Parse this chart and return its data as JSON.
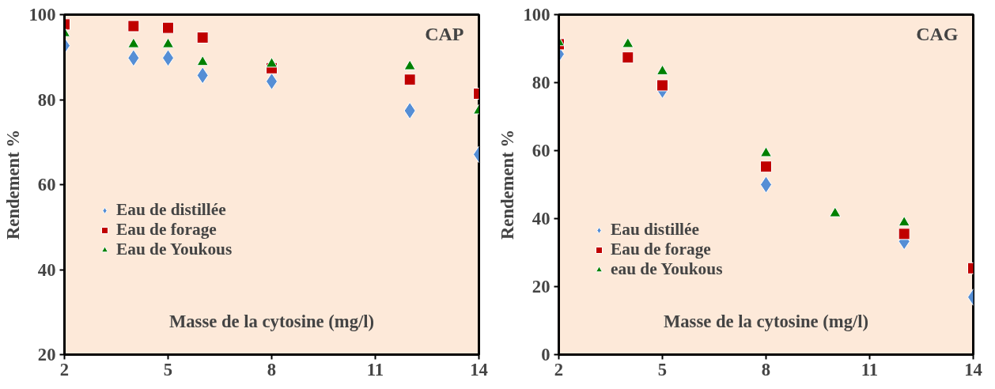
{
  "chart_data": [
    {
      "type": "scatter",
      "title": "CAP",
      "xlabel": "Masse de la cytosine (mg/l)",
      "ylabel": "Rendement %",
      "x": [
        2,
        4,
        5,
        6,
        8,
        12,
        14
      ],
      "xlim": [
        2,
        14
      ],
      "xticks": [
        2,
        5,
        8,
        11,
        14
      ],
      "ylim": [
        20,
        100
      ],
      "yticks": [
        20,
        40,
        60,
        80,
        100
      ],
      "grid": false,
      "legend": "left",
      "series": [
        {
          "name": "Eau de distillée",
          "color": "#558ed5",
          "marker": "diamond",
          "values": [
            92.7,
            89.8,
            89.8,
            85.7,
            84.3,
            77.4,
            67.1
          ]
        },
        {
          "name": "Eau de forage",
          "color": "#c00000",
          "marker": "square",
          "values": [
            97.7,
            97.3,
            96.9,
            94.6,
            87.4,
            84.7,
            81.4
          ]
        },
        {
          "name": "Eau de Youkous",
          "color": "#008000",
          "marker": "triangle",
          "values": [
            95.6,
            93.0,
            93.0,
            88.8,
            88.4,
            87.8,
            77.4
          ]
        }
      ]
    },
    {
      "type": "scatter",
      "title": "CAG",
      "xlabel": "Masse de la cytosine (mg/l)",
      "ylabel": "Rendement %",
      "x": [
        2,
        4,
        5,
        8,
        10,
        12,
        14
      ],
      "xlim": [
        2,
        14
      ],
      "xticks": [
        2,
        5,
        8,
        11,
        14
      ],
      "ylim": [
        0,
        100
      ],
      "yticks": [
        0,
        20,
        40,
        60,
        80,
        100
      ],
      "grid": false,
      "legend": "bottom left",
      "series": [
        {
          "name": "Eau distillée",
          "color": "#558ed5",
          "marker": "diamond",
          "values": [
            88.4,
            null,
            77.8,
            50.0,
            null,
            33.3,
            16.9
          ]
        },
        {
          "name": "Eau de forage",
          "color": "#c00000",
          "marker": "square",
          "values": [
            91.3,
            87.4,
            79.2,
            55.3,
            null,
            35.5,
            25.4
          ]
        },
        {
          "name": "eau de Youkous",
          "color": "#008000",
          "marker": "triangle",
          "values": [
            91.8,
            91.3,
            83.3,
            59.2,
            41.5,
            38.8,
            null
          ]
        }
      ]
    }
  ]
}
